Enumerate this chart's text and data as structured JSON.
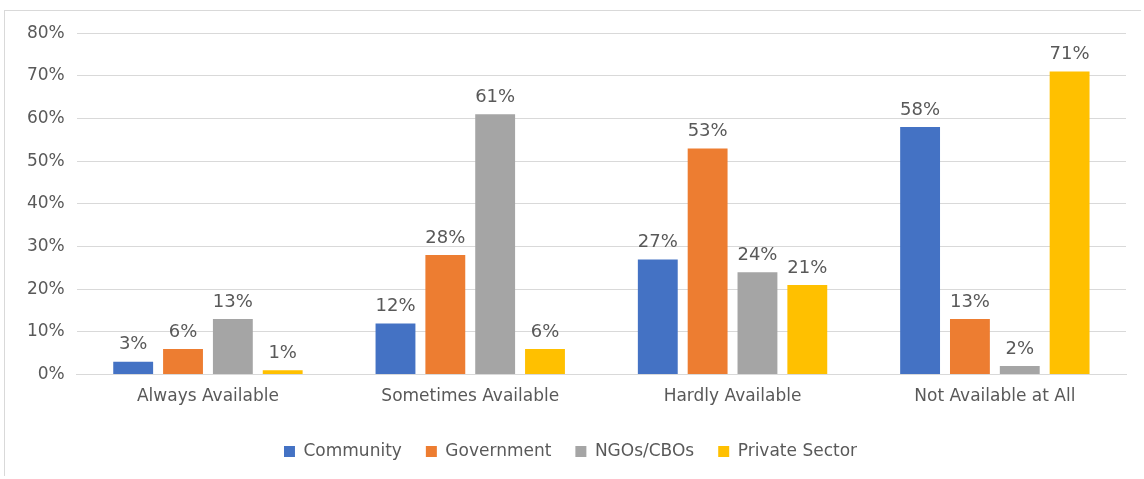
{
  "chart_data": {
    "type": "bar",
    "categories": [
      "Always Available",
      "Sometimes Available",
      "Hardly Available",
      "Not Available at All"
    ],
    "series": [
      {
        "name": "Community",
        "color": "#4472c4",
        "values": [
          3,
          12,
          27,
          58
        ],
        "value_labels": [
          "3%",
          "12%",
          "27%",
          "58%"
        ]
      },
      {
        "name": "Government",
        "color": "#ed7d31",
        "values": [
          6,
          28,
          53,
          13
        ],
        "value_labels": [
          "6%",
          "28%",
          "53%",
          "13%"
        ]
      },
      {
        "name": "NGOs/CBOs",
        "color": "#a5a5a5",
        "values": [
          13,
          61,
          24,
          2
        ],
        "value_labels": [
          "13%",
          "61%",
          "24%",
          "2%"
        ]
      },
      {
        "name": "Private Sector",
        "color": "#ffc000",
        "values": [
          1,
          6,
          21,
          71
        ],
        "value_labels": [
          "1%",
          "6%",
          "21%",
          "71%"
        ]
      }
    ],
    "ylim": [
      0,
      80
    ],
    "yticks": [
      {
        "value": 0,
        "label": "0%"
      },
      {
        "value": 10,
        "label": "10%"
      },
      {
        "value": 20,
        "label": "20%"
      },
      {
        "value": 30,
        "label": "30%"
      },
      {
        "value": 40,
        "label": "40%"
      },
      {
        "value": 50,
        "label": "50%"
      },
      {
        "value": 60,
        "label": "60%"
      },
      {
        "value": 70,
        "label": "70%"
      },
      {
        "value": 80,
        "label": "80%"
      }
    ],
    "grid": "y",
    "legend": "bottom"
  }
}
